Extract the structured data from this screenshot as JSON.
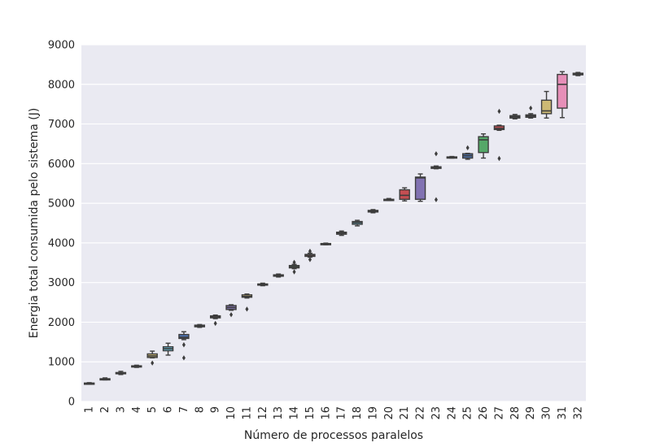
{
  "chart_data": {
    "type": "box",
    "title": "",
    "xlabel": "Número de processos paralelos",
    "ylabel": "Energia total consumida pelo sistema (J)",
    "ylim": [
      0,
      9000
    ],
    "yticks": [
      0,
      1000,
      2000,
      3000,
      4000,
      5000,
      6000,
      7000,
      8000,
      9000
    ],
    "grid": true,
    "categories": [
      "1",
      "2",
      "3",
      "4",
      "5",
      "6",
      "7",
      "8",
      "9",
      "10",
      "11",
      "12",
      "13",
      "14",
      "15",
      "16",
      "17",
      "18",
      "19",
      "20",
      "21",
      "22",
      "23",
      "24",
      "25",
      "26",
      "27",
      "28",
      "29",
      "30",
      "31",
      "32"
    ],
    "boxes": [
      {
        "min": 440,
        "q1": 445,
        "median": 455,
        "q3": 465,
        "max": 475,
        "outliers": []
      },
      {
        "min": 545,
        "q1": 560,
        "median": 565,
        "q3": 575,
        "max": 595,
        "outliers": []
      },
      {
        "min": 680,
        "q1": 700,
        "median": 715,
        "q3": 730,
        "max": 760,
        "outliers": []
      },
      {
        "min": 860,
        "q1": 875,
        "median": 885,
        "q3": 900,
        "max": 915,
        "outliers": []
      },
      {
        "min": 1100,
        "q1": 1110,
        "median": 1150,
        "q3": 1200,
        "max": 1270,
        "outliers": [
          970
        ]
      },
      {
        "min": 1170,
        "q1": 1280,
        "median": 1330,
        "q3": 1380,
        "max": 1470,
        "outliers": []
      },
      {
        "min": 1560,
        "q1": 1590,
        "median": 1620,
        "q3": 1690,
        "max": 1760,
        "outliers": [
          1430,
          1100
        ]
      },
      {
        "min": 1870,
        "q1": 1885,
        "median": 1900,
        "q3": 1925,
        "max": 1940,
        "outliers": []
      },
      {
        "min": 2090,
        "q1": 2110,
        "median": 2135,
        "q3": 2160,
        "max": 2180,
        "outliers": [
          1970
        ]
      },
      {
        "min": 2300,
        "q1": 2320,
        "median": 2370,
        "q3": 2420,
        "max": 2440,
        "outliers": [
          2190
        ]
      },
      {
        "min": 2610,
        "q1": 2630,
        "median": 2650,
        "q3": 2690,
        "max": 2710,
        "outliers": [
          2330
        ]
      },
      {
        "min": 2920,
        "q1": 2935,
        "median": 2950,
        "q3": 2965,
        "max": 2985,
        "outliers": []
      },
      {
        "min": 3140,
        "q1": 3160,
        "median": 3180,
        "q3": 3195,
        "max": 3215,
        "outliers": []
      },
      {
        "min": 3350,
        "q1": 3370,
        "median": 3400,
        "q3": 3430,
        "max": 3460,
        "outliers": [
          3510,
          3270
        ]
      },
      {
        "min": 3640,
        "q1": 3660,
        "median": 3690,
        "q3": 3710,
        "max": 3740,
        "outliers": [
          3790,
          3580
        ]
      },
      {
        "min": 3955,
        "q1": 3965,
        "median": 3975,
        "q3": 3985,
        "max": 3995,
        "outliers": []
      },
      {
        "min": 4190,
        "q1": 4220,
        "median": 4250,
        "q3": 4270,
        "max": 4300,
        "outliers": []
      },
      {
        "min": 4430,
        "q1": 4470,
        "median": 4510,
        "q3": 4540,
        "max": 4570,
        "outliers": []
      },
      {
        "min": 4760,
        "q1": 4780,
        "median": 4800,
        "q3": 4820,
        "max": 4840,
        "outliers": []
      },
      {
        "min": 5070,
        "q1": 5080,
        "median": 5090,
        "q3": 5100,
        "max": 5120,
        "outliers": []
      },
      {
        "min": 5060,
        "q1": 5100,
        "median": 5200,
        "q3": 5340,
        "max": 5390,
        "outliers": []
      },
      {
        "min": 5050,
        "q1": 5100,
        "median": 5640,
        "q3": 5660,
        "max": 5740,
        "outliers": []
      },
      {
        "min": 5870,
        "q1": 5880,
        "median": 5900,
        "q3": 5920,
        "max": 5940,
        "outliers": [
          6250,
          5090
        ]
      },
      {
        "min": 6140,
        "q1": 6150,
        "median": 6160,
        "q3": 6170,
        "max": 6180,
        "outliers": []
      },
      {
        "min": 6110,
        "q1": 6140,
        "median": 6200,
        "q3": 6250,
        "max": 6260,
        "outliers": [
          6400
        ]
      },
      {
        "min": 6140,
        "q1": 6280,
        "median": 6600,
        "q3": 6680,
        "max": 6750,
        "outliers": []
      },
      {
        "min": 6840,
        "q1": 6860,
        "median": 6890,
        "q3": 6950,
        "max": 6970,
        "outliers": [
          7320,
          6130
        ]
      },
      {
        "min": 7130,
        "q1": 7150,
        "median": 7180,
        "q3": 7210,
        "max": 7240,
        "outliers": []
      },
      {
        "min": 7150,
        "q1": 7170,
        "median": 7200,
        "q3": 7230,
        "max": 7260,
        "outliers": [
          7400
        ]
      },
      {
        "min": 7150,
        "q1": 7260,
        "median": 7330,
        "q3": 7600,
        "max": 7820,
        "outliers": []
      },
      {
        "min": 7160,
        "q1": 7400,
        "median": 8000,
        "q3": 8250,
        "max": 8320,
        "outliers": []
      },
      {
        "min": 8220,
        "q1": 8240,
        "median": 8260,
        "q3": 8280,
        "max": 8300,
        "outliers": []
      }
    ],
    "colors": [
      "#4c72b0",
      "#55a868",
      "#c44e52",
      "#8172b2",
      "#ccb974",
      "#64b5cd",
      "#4c72b0",
      "#55a868",
      "#c44e52",
      "#8172b2",
      "#ccb974",
      "#64b5cd",
      "#4c72b0",
      "#55a868",
      "#c44e52",
      "#8172b2",
      "#ccb974",
      "#64b5cd",
      "#4c72b0",
      "#55a868",
      "#c44e52",
      "#8172b2",
      "#ccb974",
      "#64b5cd",
      "#4c72b0",
      "#55a868",
      "#c44e52",
      "#c792d6",
      "#8172b2",
      "#ccb974",
      "#e68fb8",
      "#64b5cd"
    ]
  }
}
